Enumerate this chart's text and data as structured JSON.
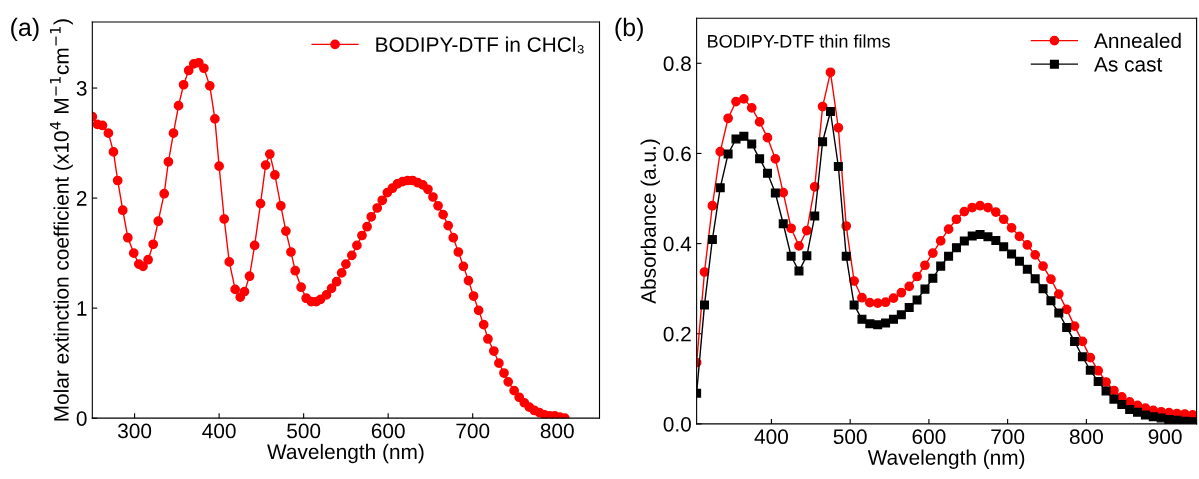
{
  "chart_data": [
    {
      "type": "line",
      "xlabel": "Wavelength (nm)",
      "ylabel": "Molar extinction coefficient (x10$^{4}$ M$^{−1}$cm$^{−1}$)",
      "annotations": [
        "(a)"
      ],
      "xlim": [
        250,
        850
      ],
      "ylim": [
        0,
        3.6
      ],
      "xticks": [
        300,
        400,
        500,
        600,
        700,
        800
      ],
      "yticks": [
        0,
        1,
        2,
        3
      ],
      "legend": "top right",
      "grid": false,
      "line_style": "solid",
      "series": [
        {
          "name": "BODIPY-DTF in CHCl₃",
          "color": "#ff0000",
          "marker": "circle",
          "x": [
            250,
            256,
            262,
            269,
            275,
            280,
            286,
            292,
            299,
            305,
            310,
            316,
            322,
            328,
            335,
            340,
            346,
            352,
            358,
            364,
            370,
            376,
            382,
            389,
            395,
            400,
            406,
            412,
            419,
            425,
            430,
            436,
            442,
            449,
            455,
            460,
            466,
            473,
            479,
            485,
            490,
            497,
            503,
            509,
            515,
            520,
            527,
            533,
            539,
            545,
            550,
            557,
            563,
            569,
            575,
            580,
            587,
            593,
            599,
            605,
            611,
            617,
            623,
            629,
            635,
            641,
            647,
            653,
            659,
            665,
            671,
            677,
            683,
            689,
            695,
            701,
            707,
            713,
            718,
            725,
            731,
            737,
            742,
            749,
            755,
            761,
            767,
            773,
            779,
            785,
            791,
            797,
            803,
            809
          ],
          "values": [
            2.74,
            2.67,
            2.66,
            2.59,
            2.42,
            2.16,
            1.89,
            1.64,
            1.5,
            1.4,
            1.38,
            1.44,
            1.58,
            1.79,
            2.04,
            2.33,
            2.59,
            2.84,
            3.03,
            3.16,
            3.22,
            3.23,
            3.18,
            3.02,
            2.72,
            2.29,
            1.81,
            1.42,
            1.17,
            1.1,
            1.15,
            1.29,
            1.57,
            1.95,
            2.3,
            2.4,
            2.21,
            1.93,
            1.7,
            1.51,
            1.34,
            1.19,
            1.09,
            1.06,
            1.06,
            1.08,
            1.12,
            1.18,
            1.24,
            1.32,
            1.4,
            1.48,
            1.57,
            1.66,
            1.74,
            1.83,
            1.91,
            1.98,
            2.05,
            2.09,
            2.13,
            2.15,
            2.16,
            2.16,
            2.14,
            2.12,
            2.08,
            2.01,
            1.93,
            1.85,
            1.75,
            1.64,
            1.51,
            1.38,
            1.25,
            1.11,
            0.98,
            0.85,
            0.72,
            0.61,
            0.5,
            0.41,
            0.33,
            0.25,
            0.19,
            0.14,
            0.1,
            0.07,
            0.05,
            0.03,
            0.02,
            0.02,
            0.01,
            0.0
          ]
        }
      ]
    },
    {
      "type": "line",
      "xlabel": "Wavelength (nm)",
      "ylabel": "Absorbance (a.u.)",
      "annotations": [
        "(b)",
        "BODIPY-DTF thin films"
      ],
      "xlim": [
        305,
        940
      ],
      "ylim": [
        0,
        0.9
      ],
      "xticks": [
        400,
        500,
        600,
        700,
        800,
        900
      ],
      "yticks": [
        {
          "value": 0,
          "label": "0.0"
        },
        0.2,
        0.4,
        0.6,
        0.8
      ],
      "legend": "top right",
      "grid": false,
      "line_style": "solid",
      "x": [
        305,
        315,
        325,
        335,
        345,
        355,
        365,
        375,
        385,
        395,
        405,
        415,
        425,
        435,
        445,
        455,
        465,
        475,
        485,
        495,
        505,
        515,
        525,
        535,
        545,
        555,
        565,
        575,
        585,
        595,
        605,
        615,
        625,
        635,
        645,
        655,
        665,
        675,
        685,
        695,
        705,
        715,
        725,
        735,
        745,
        755,
        765,
        775,
        785,
        795,
        805,
        815,
        825,
        835,
        845,
        855,
        865,
        875,
        885,
        895,
        905,
        915,
        925,
        935
      ],
      "series": [
        {
          "name": "Annealed",
          "color": "#ff0000",
          "marker": "circle",
          "values": [
            0.136,
            0.337,
            0.484,
            0.604,
            0.678,
            0.715,
            0.721,
            0.701,
            0.67,
            0.635,
            0.588,
            0.513,
            0.434,
            0.395,
            0.429,
            0.526,
            0.704,
            0.78,
            0.657,
            0.439,
            0.317,
            0.28,
            0.269,
            0.268,
            0.27,
            0.279,
            0.291,
            0.305,
            0.327,
            0.352,
            0.379,
            0.406,
            0.432,
            0.454,
            0.471,
            0.48,
            0.484,
            0.48,
            0.47,
            0.454,
            0.435,
            0.416,
            0.397,
            0.375,
            0.35,
            0.321,
            0.288,
            0.254,
            0.217,
            0.183,
            0.147,
            0.118,
            0.093,
            0.074,
            0.06,
            0.049,
            0.041,
            0.035,
            0.03,
            0.027,
            0.025,
            0.023,
            0.022,
            0.02
          ]
        },
        {
          "name": "As cast",
          "color": "#000000",
          "marker": "square",
          "values": [
            0.068,
            0.264,
            0.409,
            0.524,
            0.599,
            0.632,
            0.638,
            0.621,
            0.588,
            0.556,
            0.512,
            0.444,
            0.372,
            0.339,
            0.373,
            0.461,
            0.626,
            0.693,
            0.571,
            0.372,
            0.264,
            0.232,
            0.222,
            0.22,
            0.224,
            0.232,
            0.242,
            0.258,
            0.275,
            0.299,
            0.323,
            0.35,
            0.372,
            0.391,
            0.406,
            0.417,
            0.42,
            0.415,
            0.407,
            0.393,
            0.377,
            0.361,
            0.343,
            0.322,
            0.3,
            0.273,
            0.246,
            0.214,
            0.183,
            0.149,
            0.119,
            0.094,
            0.073,
            0.055,
            0.043,
            0.032,
            0.026,
            0.02,
            0.016,
            0.013,
            0.01,
            0.008,
            0.006,
            0.005
          ]
        }
      ]
    }
  ]
}
